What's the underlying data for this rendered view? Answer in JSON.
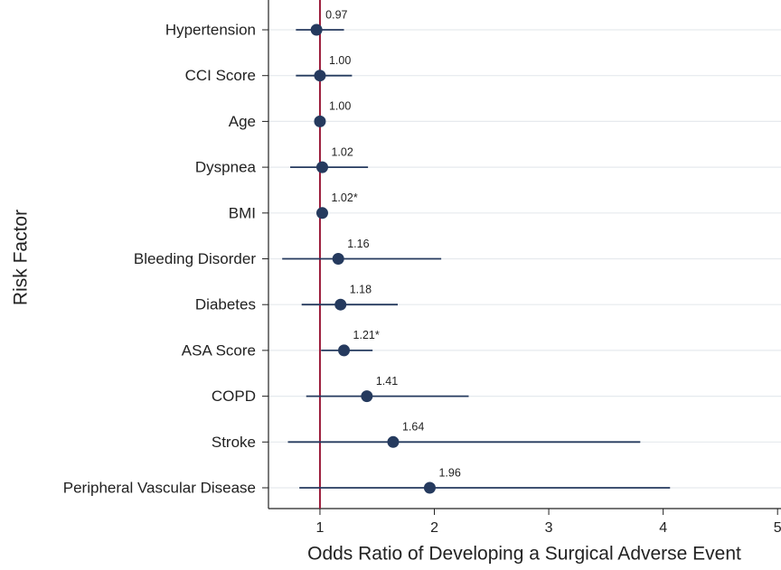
{
  "chart_data": {
    "type": "forest",
    "y_label": "Risk Factor",
    "x_label": "Odds Ratio of Developing a Surgical Adverse Event",
    "categories": [
      "Hypertension",
      "CCI Score",
      "Age",
      "Dyspnea",
      "BMI",
      "Bleeding Disorder",
      "Diabetes",
      "ASA Score",
      "COPD",
      "Stroke",
      "Peripheral Vascular Disease"
    ],
    "values": [
      0.97,
      1.0,
      1.0,
      1.02,
      1.02,
      1.16,
      1.18,
      1.21,
      1.41,
      1.64,
      1.96
    ],
    "value_labels": [
      "0.97",
      "1.00",
      "1.00",
      "1.02",
      "1.02*",
      "1.16",
      "1.18",
      "1.21*",
      "1.41",
      "1.64",
      "1.96"
    ],
    "lower": [
      0.79,
      0.79,
      0.99,
      0.74,
      1.0,
      0.67,
      0.84,
      1.01,
      0.88,
      0.72,
      0.82
    ],
    "upper": [
      1.21,
      1.28,
      1.01,
      1.42,
      1.04,
      2.06,
      1.68,
      1.46,
      2.3,
      3.8,
      4.06
    ],
    "color": "#253a5e",
    "reference_line": 1,
    "reference_color": "#9b1b3a",
    "xlim": [
      0.55,
      5.03
    ],
    "xticks": [
      1,
      2,
      3,
      4,
      5
    ],
    "grid": true
  }
}
